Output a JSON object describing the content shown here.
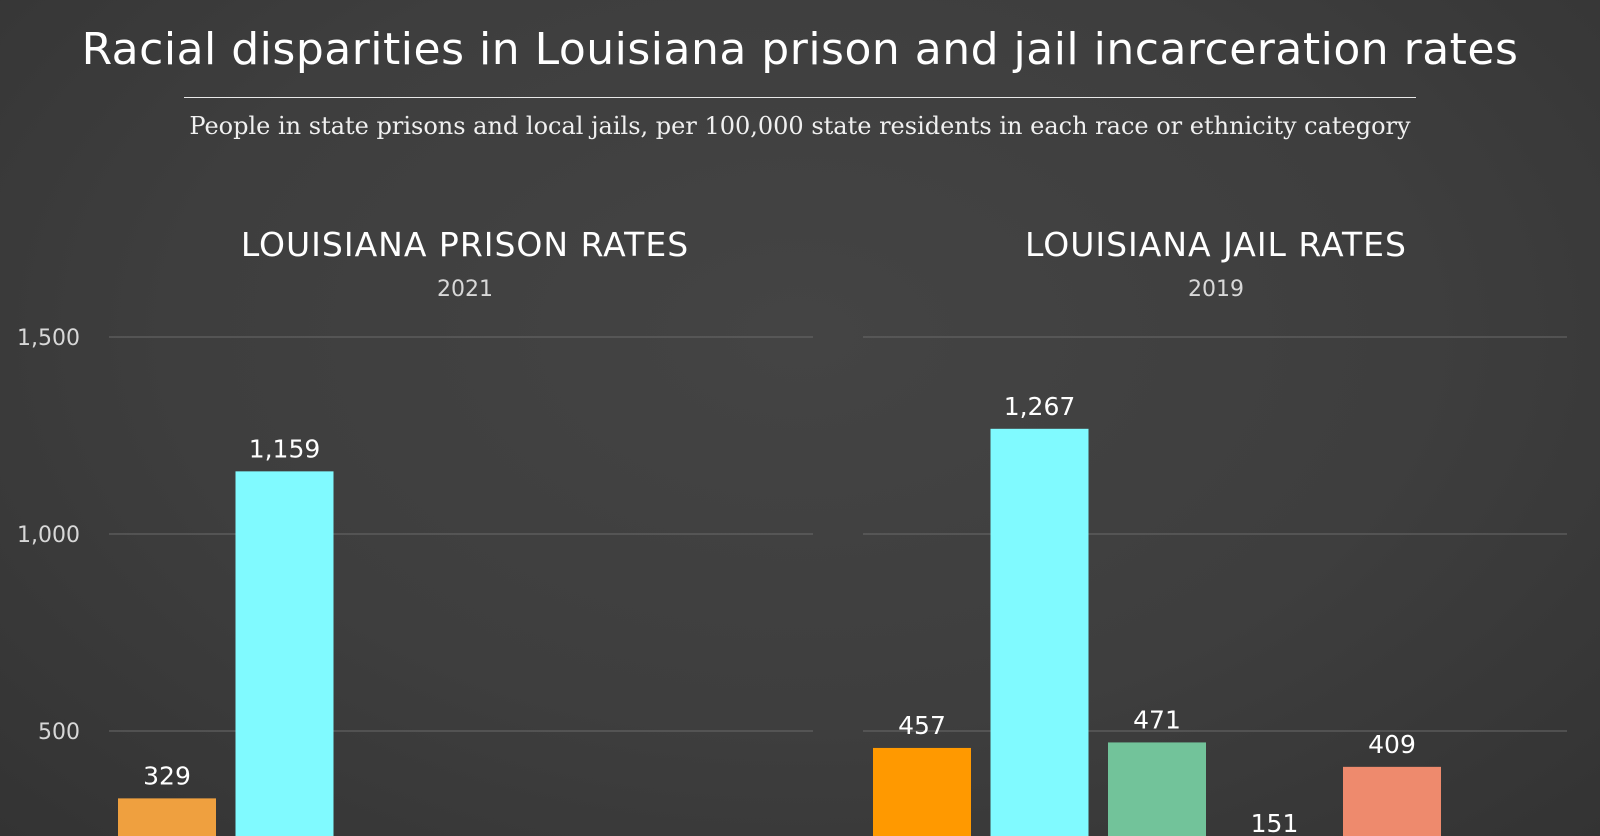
{
  "title": "Racial disparities in Louisiana prison and jail incarceration rates",
  "subtitle": "People in state prisons and local jails, per 100,000 state residents in each race or ethnicity category",
  "chart_data": [
    {
      "type": "bar",
      "title": "LOUISIANA PRISON RATES",
      "subtitle": "2021",
      "ylim": [
        0,
        1500
      ],
      "yticks": [
        500,
        1000,
        1500
      ],
      "ytick_labels": [
        "500",
        "1,000",
        "1,500"
      ],
      "grid": true,
      "values": [
        329,
        1159
      ],
      "data_labels": [
        "329",
        "1,159"
      ],
      "colors": [
        "#EFA03F",
        "#80FAFF"
      ]
    },
    {
      "type": "bar",
      "title": "LOUISIANA JAIL RATES",
      "subtitle": "2019",
      "ylim": [
        0,
        1500
      ],
      "yticks": [
        500,
        1000,
        1500
      ],
      "grid": true,
      "values": [
        457,
        1267,
        471,
        151,
        409
      ],
      "data_labels": [
        "457",
        "1,267",
        "471",
        "151",
        "409"
      ],
      "colors": [
        "#FF9900",
        "#80FAFF",
        "#72C39A",
        "#B58CD6",
        "#EE8A6D"
      ]
    }
  ]
}
